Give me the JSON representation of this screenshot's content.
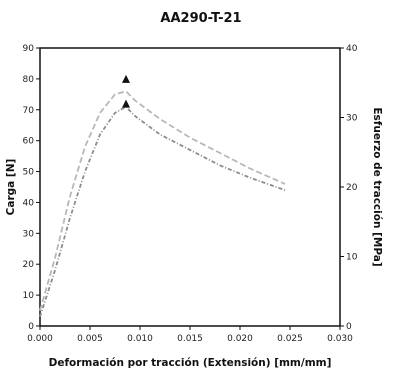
{
  "chart_data": {
    "type": "line",
    "title": "AA290-T-21",
    "xlabel": "Deformación por tracción (Extensión) [mm/mm]",
    "ylabel": "Carga [N]",
    "y2label": "Esfuerzo de tracción [MPa]",
    "xlim": [
      0,
      0.03
    ],
    "ylim": [
      0,
      90
    ],
    "y2lim": [
      0,
      40
    ],
    "x_ticks": [
      "0.000",
      "0.005",
      "0.010",
      "0.015",
      "0.020",
      "0.025",
      "0.030"
    ],
    "x_tick_values": [
      0,
      0.005,
      0.01,
      0.015,
      0.02,
      0.025,
      0.03
    ],
    "y_ticks": [
      "0",
      "10",
      "20",
      "30",
      "40",
      "50",
      "60",
      "70",
      "80",
      "90"
    ],
    "y_tick_values": [
      0,
      10,
      20,
      30,
      40,
      50,
      60,
      70,
      80,
      90
    ],
    "y2_ticks": [
      "0",
      "10",
      "20",
      "30",
      "40"
    ],
    "y2_tick_values": [
      0,
      10,
      20,
      30,
      40
    ],
    "grid": false,
    "colors": {
      "series_a": "#b8b8b8",
      "series_b": "#8c8c8c",
      "marker": "#111111"
    },
    "series": [
      {
        "x": [
          0,
          0.0015,
          0.003,
          0.0045,
          0.006,
          0.0075,
          0.0086,
          0.0095,
          0.012,
          0.015,
          0.018,
          0.021,
          0.0245
        ],
        "y": [
          5,
          22,
          42,
          58,
          69,
          75,
          76,
          73,
          67,
          61,
          56,
          51,
          46
        ]
      },
      {
        "x": [
          0,
          0.0015,
          0.003,
          0.0045,
          0.006,
          0.0075,
          0.0086,
          0.0095,
          0.012,
          0.015,
          0.018,
          0.021,
          0.0245
        ],
        "y": [
          3,
          18,
          35,
          50,
          62,
          69,
          71,
          68,
          62,
          57,
          52,
          48,
          44
        ]
      }
    ],
    "markers": [
      {
        "x": 0.0086,
        "y": 80
      },
      {
        "x": 0.0086,
        "y": 72
      }
    ]
  }
}
